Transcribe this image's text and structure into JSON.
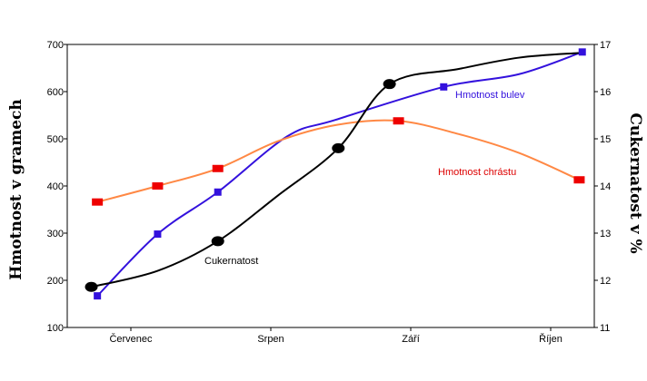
{
  "chart_data": {
    "type": "line",
    "title": "",
    "categories": [
      "Červenec",
      "Srpen",
      "Září",
      "Říjen"
    ],
    "x_range": [
      0,
      17.5
    ],
    "y_left": {
      "label": "Hmotnost v gramech",
      "range": [
        100,
        700
      ],
      "ticks": [
        100,
        200,
        300,
        400,
        500,
        600,
        700
      ]
    },
    "y_right": {
      "label": "Cukernatost v %",
      "range": [
        11,
        17
      ],
      "ticks": [
        11,
        12,
        13,
        14,
        15,
        16,
        17
      ]
    },
    "grid": false,
    "series": [
      {
        "name": "Hmotnost bulev",
        "axis": "left",
        "color": "#3311dd",
        "marker": "square",
        "x": [
          1.0,
          3.0,
          5.0,
          7.3,
          8.9,
          12.5,
          15.0,
          17.1
        ],
        "y": [
          167,
          298,
          387,
          505,
          540,
          610,
          637,
          684
        ],
        "markers": [
          1.0,
          3.0,
          5.0,
          12.5,
          17.1
        ]
      },
      {
        "name": "Hmotnost chrástu",
        "axis": "left",
        "color": "#ff8844",
        "marker": "square",
        "marker_color": "#ee0000",
        "x": [
          1.0,
          3.0,
          5.0,
          7.0,
          9.0,
          11.0,
          13.0,
          15.0,
          17.0
        ],
        "y": [
          366,
          400,
          437,
          495,
          530,
          538,
          510,
          470,
          413
        ],
        "markers": [
          1.0,
          3.0,
          5.0,
          11.0,
          17.0
        ]
      },
      {
        "name": "Cukernatost",
        "axis": "right",
        "color": "#000000",
        "marker": "circle",
        "x": [
          0.8,
          3.0,
          5.0,
          7.0,
          9.0,
          10.7,
          13.0,
          15.0,
          17.0
        ],
        "y": [
          11.86,
          12.2,
          12.83,
          13.8,
          14.8,
          16.16,
          16.48,
          16.72,
          16.82
        ],
        "markers": [
          0.8,
          5.0,
          9.0,
          10.7
        ]
      }
    ],
    "annotations": [
      {
        "text": "Hmotnost bulev",
        "series": "Hmotnost bulev"
      },
      {
        "text": "Hmotnost chrástu",
        "series": "Hmotnost chrástu"
      },
      {
        "text": "Cukernatost",
        "series": "Cukernatost"
      }
    ]
  }
}
